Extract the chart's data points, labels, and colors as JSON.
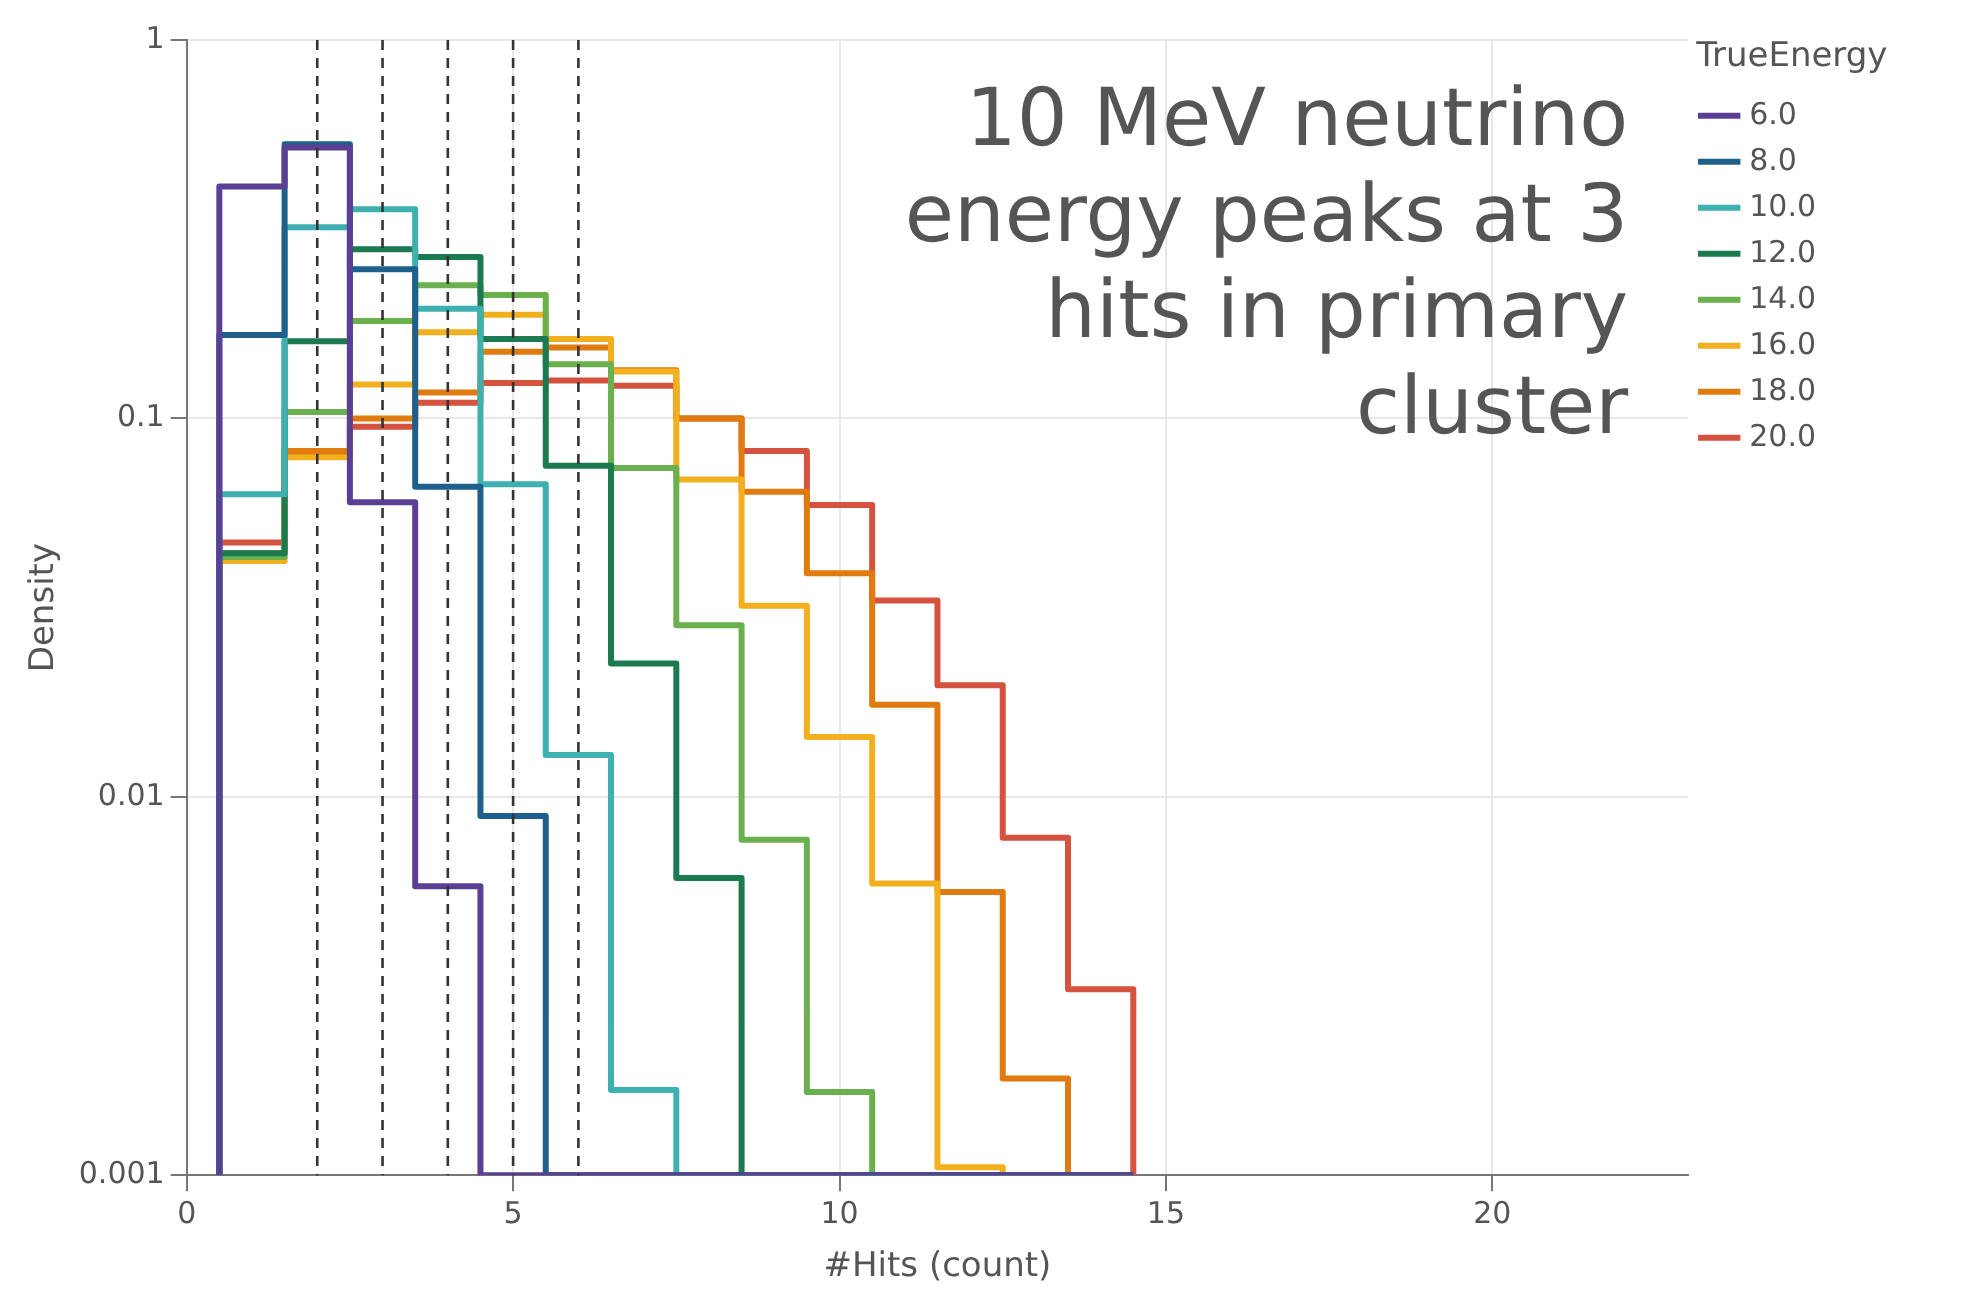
{
  "chart_data": {
    "type": "histogram",
    "xlabel": "#Hits (count)",
    "ylabel": "Density",
    "legend_title": "TrueEnergy",
    "annotations": [
      "10 MeV neutrino energy peaks at 3 hits in primary cluster"
    ],
    "bins": [
      0.5,
      1.5,
      2.5,
      3.5,
      4.5,
      5.5,
      6.5,
      7.5,
      8.5,
      9.5,
      10.5,
      11.5,
      12.5,
      13.5,
      14.5
    ],
    "series": [
      {
        "name": "6.0",
        "color": "#5b3f95",
        "values": [
          0.41,
          0.52,
          0.06,
          0.0058,
          null,
          null,
          null,
          null,
          null,
          null,
          null,
          null,
          null,
          null
        ]
      },
      {
        "name": "8.0",
        "color": "#1f5f8b",
        "values": [
          0.166,
          0.53,
          0.248,
          0.066,
          0.0089,
          null,
          null,
          null,
          null,
          null,
          null,
          null,
          null,
          null
        ]
      },
      {
        "name": "10.0",
        "color": "#3fb0b0",
        "values": [
          0.063,
          0.32,
          0.357,
          0.195,
          0.067,
          0.0129,
          0.00168,
          null,
          null,
          null,
          null,
          null,
          null,
          null
        ]
      },
      {
        "name": "12.0",
        "color": "#1b7a4f",
        "values": [
          0.044,
          0.16,
          0.28,
          0.267,
          0.162,
          0.075,
          0.0225,
          0.0061,
          null,
          null,
          null,
          null,
          null,
          null
        ]
      },
      {
        "name": "14.0",
        "color": "#6ab04c",
        "values": [
          0.043,
          0.104,
          0.181,
          0.225,
          0.212,
          0.139,
          0.074,
          0.0284,
          0.0077,
          0.00166,
          null,
          null,
          null,
          null
        ]
      },
      {
        "name": "16.0",
        "color": "#f2b01e",
        "values": [
          0.042,
          0.079,
          0.123,
          0.169,
          0.188,
          0.162,
          0.133,
          0.069,
          0.032,
          0.0144,
          0.0059,
          0.00105,
          null,
          null
        ]
      },
      {
        "name": "18.0",
        "color": "#e07b10",
        "values": [
          0.044,
          0.082,
          0.1,
          0.117,
          0.15,
          0.154,
          0.134,
          0.1,
          0.064,
          0.039,
          0.0175,
          0.0056,
          0.0018,
          null
        ]
      },
      {
        "name": "20.0",
        "color": "#d4523e",
        "values": [
          0.047,
          0.081,
          0.095,
          0.11,
          0.124,
          0.126,
          0.122,
          0.1,
          0.082,
          0.059,
          0.033,
          0.0197,
          0.0078,
          0.0031
        ]
      }
    ],
    "ref_lines": [
      {
        "axis": "x",
        "value": 2,
        "color": "#333333",
        "line_style": "dashed"
      },
      {
        "axis": "x",
        "value": 3,
        "color": "#333333",
        "line_style": "dashed"
      },
      {
        "axis": "x",
        "value": 4,
        "color": "#333333",
        "line_style": "dashed"
      },
      {
        "axis": "x",
        "value": 5,
        "color": "#333333",
        "line_style": "dashed"
      },
      {
        "axis": "x",
        "value": 6,
        "color": "#333333",
        "line_style": "dashed"
      }
    ],
    "xlim": [
      0,
      23
    ],
    "xticks": [
      0,
      5,
      10,
      15,
      20
    ],
    "ylim": [
      0.001,
      1
    ],
    "yticks": [
      0.001,
      0.01,
      0.1,
      1
    ],
    "log": "y",
    "grid": true,
    "legend": "right"
  }
}
